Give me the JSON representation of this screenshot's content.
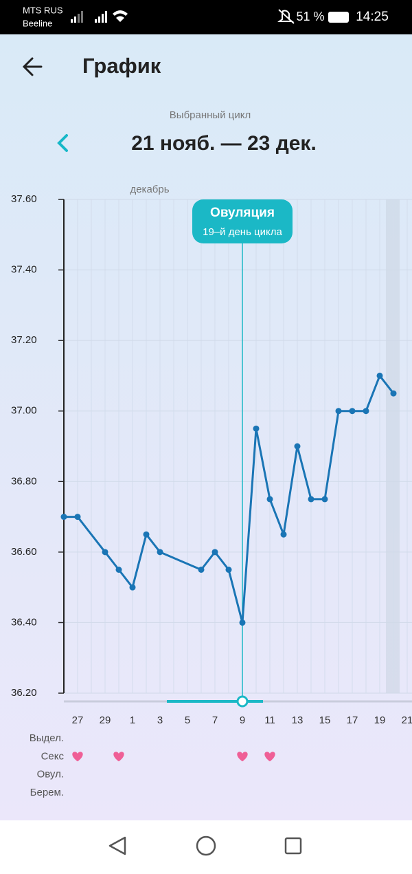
{
  "status_bar": {
    "carrier": "MTS RUS",
    "carrier2": "Beeline",
    "battery": "51 %",
    "time": "14:25"
  },
  "header": {
    "title": "График"
  },
  "cycle": {
    "caption": "Выбранный цикл",
    "range": "21 нояб. — 23 дек."
  },
  "chart_data": {
    "type": "line",
    "month_label": "декабрь",
    "color": "#1a75b5",
    "categories": [
      null,
      "27",
      null,
      "29",
      null,
      "1",
      null,
      "3",
      null,
      "5",
      null,
      "7",
      null,
      "9",
      null,
      "11",
      null,
      "13",
      null,
      "15",
      null,
      "17",
      null,
      "19",
      null,
      "21"
    ],
    "values": [
      36.7,
      36.7,
      null,
      36.6,
      36.55,
      36.5,
      36.65,
      36.6,
      null,
      null,
      36.55,
      36.6,
      36.55,
      36.4,
      36.95,
      36.75,
      36.65,
      36.9,
      36.75,
      36.75,
      37.0,
      37.0,
      37.0,
      37.1,
      37.05,
      null
    ],
    "ylim": [
      36.2,
      37.6
    ],
    "yticks": [
      {
        "value": 36.2,
        "label": "36.20"
      },
      {
        "value": 36.4,
        "label": "36.40"
      },
      {
        "value": 36.6,
        "label": "36.60"
      },
      {
        "value": 36.8,
        "label": "36.80"
      },
      {
        "value": 37.0,
        "label": "37.00"
      },
      {
        "value": 37.2,
        "label": "37.20"
      },
      {
        "value": 37.4,
        "label": "37.40"
      },
      {
        "value": 37.6,
        "label": "37.60"
      }
    ],
    "grid": true,
    "ovulation": {
      "day": "9",
      "title": "Овуляция",
      "subtitle": "19–й день цикла"
    },
    "rows": [
      {
        "label": "Выдел.",
        "marks": [
          false,
          false,
          false,
          false,
          false,
          false,
          false,
          false,
          false,
          false,
          false,
          false,
          false,
          false,
          false,
          false,
          false,
          false,
          false,
          false,
          false,
          false,
          false,
          false,
          false,
          false
        ]
      },
      {
        "label": "Секс",
        "marks": [
          false,
          true,
          false,
          false,
          true,
          false,
          false,
          false,
          false,
          false,
          false,
          false,
          false,
          true,
          false,
          true,
          false,
          false,
          false,
          false,
          false,
          false,
          false,
          false,
          false,
          false
        ]
      },
      {
        "label": "Овул.",
        "marks": [
          false,
          false,
          false,
          false,
          false,
          false,
          false,
          false,
          false,
          false,
          false,
          false,
          false,
          false,
          false,
          false,
          false,
          false,
          false,
          false,
          false,
          false,
          false,
          false,
          false,
          false
        ]
      },
      {
        "label": "Берем.",
        "marks": [
          false,
          false,
          false,
          false,
          false,
          false,
          false,
          false,
          false,
          false,
          false,
          false,
          false,
          false,
          false,
          false,
          false,
          false,
          false,
          false,
          false,
          false,
          false,
          false,
          false,
          false
        ]
      }
    ]
  }
}
